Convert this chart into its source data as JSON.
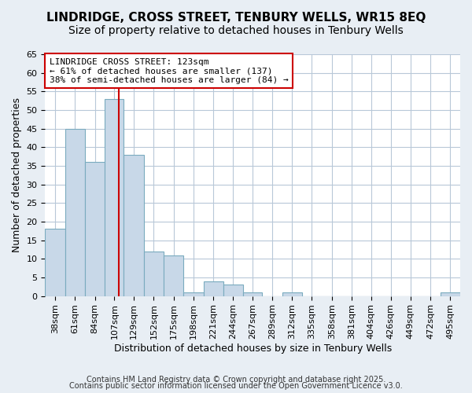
{
  "title": "LINDRIDGE, CROSS STREET, TENBURY WELLS, WR15 8EQ",
  "subtitle": "Size of property relative to detached houses in Tenbury Wells",
  "xlabel": "Distribution of detached houses by size in Tenbury Wells",
  "ylabel": "Number of detached properties",
  "bar_values": [
    18,
    45,
    36,
    53,
    38,
    12,
    11,
    1,
    4,
    3,
    1,
    0,
    1,
    0,
    0,
    0,
    0,
    0,
    0,
    0,
    1
  ],
  "bin_edges": [
    38,
    61,
    84,
    107,
    129,
    152,
    175,
    198,
    221,
    244,
    267,
    289,
    312,
    335,
    358,
    381,
    404,
    426,
    449,
    472,
    495,
    518
  ],
  "bar_labels": [
    "38sqm",
    "61sqm",
    "84sqm",
    "107sqm",
    "129sqm",
    "152sqm",
    "175sqm",
    "198sqm",
    "221sqm",
    "244sqm",
    "267sqm",
    "289sqm",
    "312sqm",
    "335sqm",
    "358sqm",
    "381sqm",
    "404sqm",
    "426sqm",
    "449sqm",
    "472sqm",
    "495sqm"
  ],
  "bar_color": "#c8d8e8",
  "bar_edge_color": "#7aabbf",
  "ylim": [
    0,
    65
  ],
  "yticks": [
    0,
    5,
    10,
    15,
    20,
    25,
    30,
    35,
    40,
    45,
    50,
    55,
    60,
    65
  ],
  "vline_x": 123,
  "vline_color": "#cc0000",
  "annotation_title": "LINDRIDGE CROSS STREET: 123sqm",
  "annotation_line1": "← 61% of detached houses are smaller (137)",
  "annotation_line2": "38% of semi-detached houses are larger (84) →",
  "annotation_box_color": "#ffffff",
  "annotation_box_edge_color": "#cc0000",
  "footer1": "Contains HM Land Registry data © Crown copyright and database right 2025.",
  "footer2": "Contains public sector information licensed under the Open Government Licence v3.0.",
  "background_color": "#e8eef4",
  "plot_bg_color": "#ffffff",
  "grid_color": "#b8c8d8",
  "title_fontsize": 11,
  "subtitle_fontsize": 10,
  "axis_label_fontsize": 9,
  "tick_fontsize": 8,
  "footer_fontsize": 7
}
